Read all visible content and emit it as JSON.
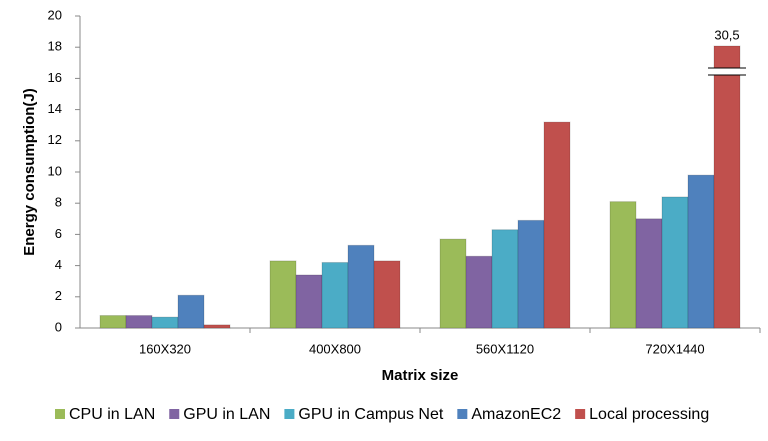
{
  "chart_data": {
    "type": "bar",
    "x_label": "Matrix size",
    "y_label": "Energy consumption(J)",
    "categories": [
      "160X320",
      "400X800",
      "560X1120",
      "720X1440"
    ],
    "series": [
      {
        "name": "CPU in LAN",
        "color": "#9bbb59",
        "values": [
          0.8,
          4.3,
          5.7,
          8.1
        ]
      },
      {
        "name": "GPU in LAN",
        "color": "#8064a2",
        "values": [
          0.8,
          3.4,
          4.6,
          7.0
        ]
      },
      {
        "name": "GPU in Campus Net",
        "color": "#4bacc6",
        "values": [
          0.7,
          4.2,
          6.3,
          8.4
        ]
      },
      {
        "name": "AmazonEC2",
        "color": "#4f81bd",
        "values": [
          2.1,
          5.3,
          6.9,
          9.8
        ]
      },
      {
        "name": "Local processing",
        "color": "#c0504d",
        "values": [
          0.2,
          4.3,
          13.2,
          30.5
        ],
        "value_labels": [
          null,
          null,
          null,
          "30,5"
        ]
      }
    ],
    "ylim": [
      0,
      20
    ],
    "yticks": [
      0,
      2,
      4,
      6,
      8,
      10,
      12,
      14,
      16,
      18,
      20
    ],
    "grid": false,
    "legend": "bottom"
  }
}
